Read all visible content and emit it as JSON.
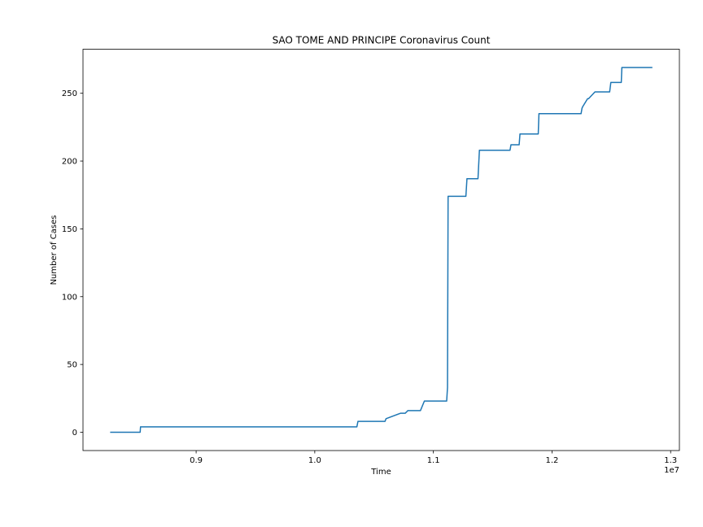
{
  "chart_data": {
    "type": "line",
    "title": "SAO TOME AND PRINCIPE Coronavirus Count",
    "xlabel": "Time",
    "ylabel": "Number of Cases",
    "x_offset_label": "1e7",
    "xlim": [
      0.8046,
      1.3074
    ],
    "ylim": [
      -13.5,
      282.5
    ],
    "xticks": [
      0.9,
      1.0,
      1.1,
      1.2,
      1.3
    ],
    "xtick_labels": [
      "0.9",
      "1.0",
      "1.1",
      "1.2",
      "1.3"
    ],
    "yticks": [
      0,
      50,
      100,
      150,
      200,
      250
    ],
    "ytick_labels": [
      "0",
      "50",
      "100",
      "150",
      "200",
      "250"
    ],
    "grid": false,
    "series": [
      {
        "color": "#1f77b4",
        "x": [
          0.8275,
          0.8528,
          0.8531,
          1.0355,
          1.0364,
          1.0592,
          1.0601,
          1.0722,
          1.0762,
          1.0774,
          1.0785,
          1.0891,
          1.0924,
          1.1112,
          1.1119,
          1.1124,
          1.113,
          1.116,
          1.1274,
          1.1283,
          1.1376,
          1.1388,
          1.1646,
          1.1654,
          1.1723,
          1.173,
          1.1884,
          1.189,
          1.2245,
          1.2253,
          1.2258,
          1.23,
          1.2308,
          1.2362,
          1.2371,
          1.2486,
          1.2496,
          1.2584,
          1.2589,
          1.2846
        ],
        "y": [
          0,
          0,
          4,
          4,
          8,
          8,
          10,
          14,
          14,
          15,
          16,
          16,
          23,
          23,
          33,
          174,
          174,
          174,
          174,
          187,
          187,
          208,
          208,
          212,
          212,
          220,
          220,
          235,
          235,
          239,
          240,
          246,
          246,
          251,
          251,
          251,
          258,
          258,
          269,
          269
        ]
      }
    ]
  }
}
